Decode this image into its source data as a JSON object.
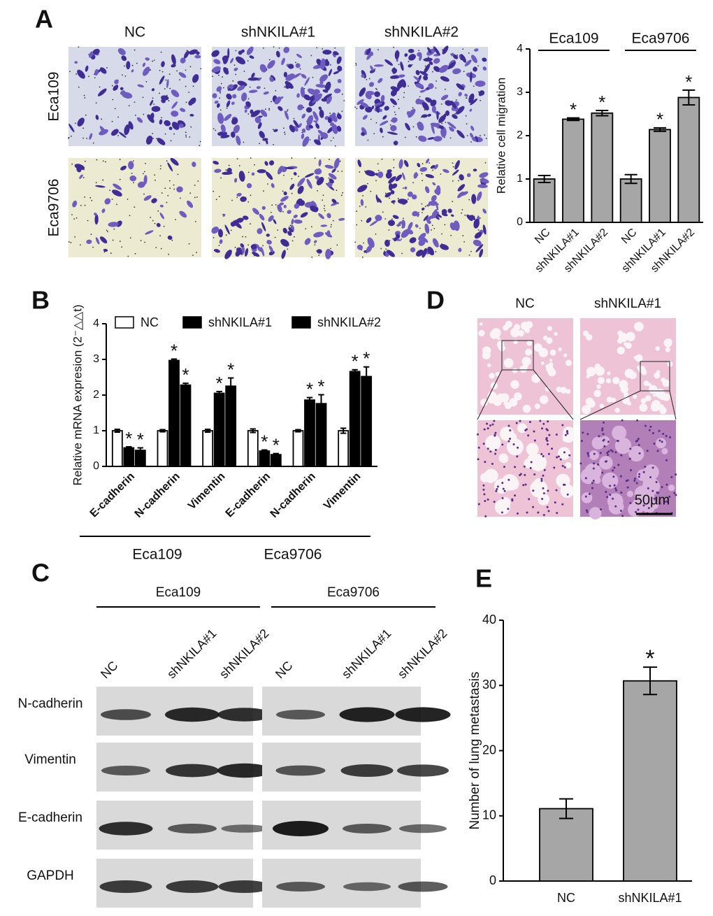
{
  "panel_labels": [
    "A",
    "B",
    "C",
    "D",
    "E"
  ],
  "panel_a": {
    "columns": [
      "NC",
      "shNKILA#1",
      "shNKILA#2"
    ],
    "rows": [
      "Eca109",
      "Eca9706"
    ]
  },
  "panel_c": {
    "groups": [
      "Eca109",
      "Eca9706"
    ],
    "lanes": [
      "NC",
      "shNKILA#1",
      "shNKILA#2"
    ],
    "bands": [
      "N-cadherin",
      "Vimentin",
      "E-cadherin",
      "GAPDH"
    ]
  },
  "panel_d": {
    "columns": [
      "NC",
      "shNKILA#1"
    ],
    "scale_bar": "50µm"
  },
  "chart_data": [
    {
      "type": "bar",
      "ylabel": "Relative cell migration",
      "categories": [
        "NC",
        "shNKILA#1",
        "shNKILA#2",
        "NC",
        "shNKILA#1",
        "shNKILA#2"
      ],
      "groups": [
        "Eca109",
        "Eca9706"
      ],
      "values": [
        1,
        2.38,
        2.52,
        1,
        2.14,
        2.88
      ],
      "errors": [
        0.08,
        0.03,
        0.06,
        0.1,
        0.04,
        0.17
      ],
      "significance": [
        null,
        "*",
        "*",
        null,
        "*",
        "*"
      ],
      "color": "#a6a6a6",
      "ylim": [
        0,
        4
      ],
      "yticks": [
        0,
        1,
        2,
        3,
        4
      ]
    },
    {
      "type": "grouped_bar",
      "ylabel": "Relative mRNA expresion (2⁻△△t)",
      "categories": [
        "E-cadherin",
        "N-cadherin",
        "Vimentin",
        "E-cadherin",
        "N-cadherin",
        "Vimentin"
      ],
      "groups": [
        "Eca109",
        "Eca9706"
      ],
      "series": [
        {
          "name": "NC",
          "color": "#ffffff",
          "values": [
            1,
            1,
            1,
            1,
            1,
            1
          ],
          "errors": [
            0.04,
            0.03,
            0.04,
            0.05,
            0.03,
            0.07
          ],
          "significance": [
            null,
            null,
            null,
            null,
            null,
            null
          ]
        },
        {
          "name": "shNKILA#1",
          "color": "#000000",
          "values": [
            0.52,
            2.97,
            2.05,
            0.43,
            1.86,
            2.66
          ],
          "errors": [
            0.03,
            0.04,
            0.05,
            0.03,
            0.07,
            0.05
          ],
          "significance": [
            "*",
            "*",
            "*",
            "*",
            "*",
            "*"
          ]
        },
        {
          "name": "shNKILA#2",
          "color": "#000000",
          "values": [
            0.45,
            2.28,
            2.25,
            0.33,
            1.76,
            2.52
          ],
          "errors": [
            0.07,
            0.05,
            0.23,
            0.03,
            0.25,
            0.27
          ],
          "significance": [
            "*",
            "*",
            "*",
            "*",
            "*",
            "*"
          ]
        }
      ],
      "ylim": [
        0,
        4
      ],
      "yticks": [
        0,
        1,
        2,
        3,
        4
      ]
    },
    {
      "type": "bar",
      "ylabel": "Number of lung metastasis",
      "categories": [
        "NC",
        "shNKILA#1"
      ],
      "values": [
        11.1,
        30.7
      ],
      "errors": [
        1.5,
        2.1
      ],
      "significance": [
        null,
        "*"
      ],
      "color": "#a6a6a6",
      "ylim": [
        0,
        40
      ],
      "yticks": [
        0,
        10,
        20,
        30,
        40
      ]
    }
  ]
}
